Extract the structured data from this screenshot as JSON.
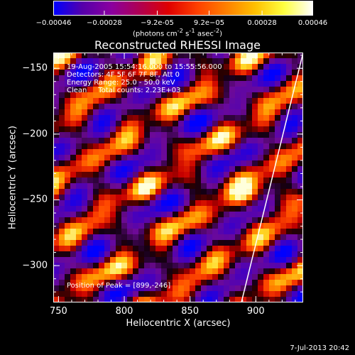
{
  "colorbar": {
    "ticks": [
      "-0.00046",
      "-0.00028",
      "-9.2e-05",
      "9.2e-05",
      "0.00028",
      "0.00046"
    ],
    "units_html": "(photons cm<sup>-2</sup> s<sup>-1</sup> asec<sup>-2</sup>)",
    "colors": [
      "#0000ff",
      "#5500aa",
      "#8a00a0",
      "#b00050",
      "#e00000",
      "#ff4000",
      "#ff8000",
      "#ffc000",
      "#ffff40",
      "#ffffff"
    ]
  },
  "header": {
    "title": "Reconstructed RHESSI Image"
  },
  "info": {
    "time": "19-Aug-2005 15:54:16.000 to 15:55:56.000",
    "detectors": "Detectors: 4F 5F 6F 7F 8F, Att 0",
    "energy": "Energy Range: 25.0 - 50.0 keV",
    "clean": "Clean     Total counts: 2.23E+03",
    "peak": "Position of Peak = [899,-246]"
  },
  "footer": {
    "date": "7-Jul-2013 20:42"
  },
  "chart_data": {
    "type": "heatmap",
    "title": "Reconstructed RHESSI Image",
    "xlabel": "Heliocentric X (arcsec)",
    "ylabel": "Heliocentric Y (arcsec)",
    "xlim": [
      746,
      936
    ],
    "ylim": [
      -328,
      -138
    ],
    "xticks": [
      750,
      800,
      850,
      900
    ],
    "yticks": [
      -150,
      -200,
      -250,
      -300
    ],
    "xtick_labels": [
      "750",
      "800",
      "850",
      "900"
    ],
    "ytick_labels": [
      "−150",
      "−200",
      "−250",
      "−300"
    ],
    "colorbar_range": [
      -0.00046,
      0.00046
    ],
    "peak_position": [
      899,
      -246
    ],
    "limb_line": {
      "x": [
        936,
        889
      ],
      "y": [
        -138,
        -328
      ]
    },
    "colormap": "red-temperature (blue → purple → black → red → yellow → white)"
  }
}
